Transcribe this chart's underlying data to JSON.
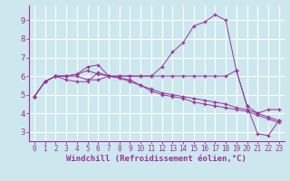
{
  "background_color": "#cce8ee",
  "grid_color": "#ffffff",
  "line_color": "#993399",
  "marker": "+",
  "xlabel": "Windchill (Refroidissement éolien,°C)",
  "xlabel_fontsize": 6.5,
  "xtick_fontsize": 5.5,
  "ytick_fontsize": 6.5,
  "xlim": [
    -0.5,
    23.5
  ],
  "ylim": [
    2.5,
    9.8
  ],
  "yticks": [
    3,
    4,
    5,
    6,
    7,
    8,
    9
  ],
  "xticks": [
    0,
    1,
    2,
    3,
    4,
    5,
    6,
    7,
    8,
    9,
    10,
    11,
    12,
    13,
    14,
    15,
    16,
    17,
    18,
    19,
    20,
    21,
    22,
    23
  ],
  "series": [
    [
      4.9,
      5.7,
      6.0,
      6.0,
      6.1,
      6.5,
      6.6,
      6.0,
      6.0,
      6.0,
      6.0,
      6.0,
      6.5,
      7.3,
      7.8,
      8.7,
      8.9,
      9.3,
      9.0,
      6.3,
      4.4,
      2.9,
      2.8,
      3.6
    ],
    [
      4.9,
      5.7,
      6.0,
      6.0,
      6.1,
      6.3,
      6.1,
      6.0,
      6.0,
      6.0,
      6.0,
      6.0,
      6.0,
      6.0,
      6.0,
      6.0,
      6.0,
      6.0,
      6.0,
      6.3,
      4.4,
      4.0,
      4.2,
      4.2
    ],
    [
      4.9,
      5.7,
      6.0,
      5.8,
      5.7,
      5.7,
      6.2,
      6.0,
      5.9,
      5.8,
      5.5,
      5.3,
      5.1,
      5.0,
      4.9,
      4.8,
      4.7,
      4.6,
      4.5,
      4.3,
      4.2,
      4.0,
      3.8,
      3.6
    ],
    [
      4.9,
      5.7,
      6.0,
      6.0,
      6.0,
      5.8,
      5.8,
      6.0,
      5.9,
      5.7,
      5.5,
      5.2,
      5.0,
      4.9,
      4.8,
      4.6,
      4.5,
      4.4,
      4.3,
      4.2,
      4.1,
      3.9,
      3.7,
      3.5
    ]
  ]
}
